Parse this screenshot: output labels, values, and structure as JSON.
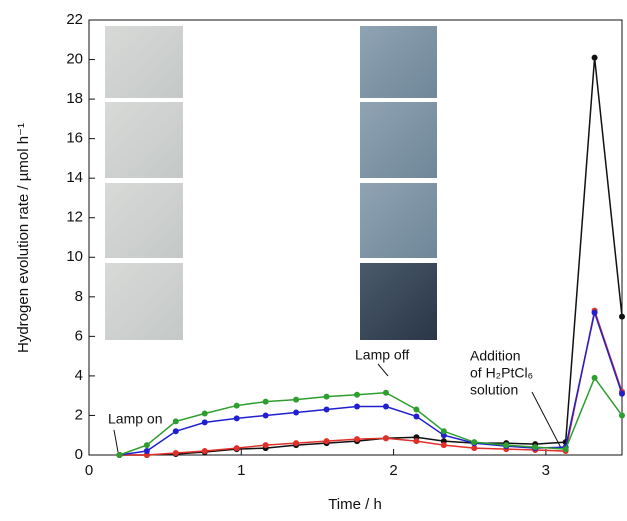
{
  "chart_data": {
    "type": "line",
    "xlabel": "Time / h",
    "ylabel": "Hydrogen evolution rate / µmol h⁻¹",
    "x": [
      0.2,
      0.38,
      0.57,
      0.76,
      0.97,
      1.16,
      1.36,
      1.56,
      1.76,
      1.95,
      2.15,
      2.33,
      2.53,
      2.74,
      2.93,
      3.13,
      3.32,
      3.5
    ],
    "series": [
      {
        "color": "#111111",
        "values": [
          0,
          0,
          0.05,
          0.15,
          0.3,
          0.35,
          0.5,
          0.6,
          0.7,
          0.85,
          0.9,
          0.7,
          0.6,
          0.6,
          0.55,
          0.65,
          20.1,
          7.0
        ]
      },
      {
        "color": "#e0302a",
        "values": [
          0,
          0,
          0.1,
          0.2,
          0.35,
          0.5,
          0.6,
          0.7,
          0.8,
          0.85,
          0.7,
          0.5,
          0.35,
          0.3,
          0.25,
          0.2,
          7.3,
          3.2
        ]
      },
      {
        "color": "#2020d0",
        "values": [
          0,
          0.2,
          1.2,
          1.65,
          1.85,
          2.0,
          2.15,
          2.3,
          2.45,
          2.45,
          1.95,
          1.0,
          0.6,
          0.45,
          0.35,
          0.4,
          7.2,
          3.1
        ]
      },
      {
        "color": "#2e9e2e",
        "values": [
          0,
          0.5,
          1.7,
          2.1,
          2.5,
          2.7,
          2.8,
          2.95,
          3.05,
          3.15,
          2.3,
          1.2,
          0.65,
          0.5,
          0.4,
          0.3,
          3.9,
          2.0
        ]
      }
    ],
    "xlim": [
      0,
      3.5
    ],
    "xticks": [
      0,
      1,
      2,
      3
    ],
    "ylim": [
      0,
      22
    ],
    "yticks": [
      0,
      2,
      4,
      6,
      8,
      10,
      12,
      14,
      16,
      18,
      20,
      22
    ],
    "annotations": [
      "Lamp on",
      "Lamp off",
      "Addition",
      "of H₂PtCl₆",
      "solution"
    ]
  }
}
